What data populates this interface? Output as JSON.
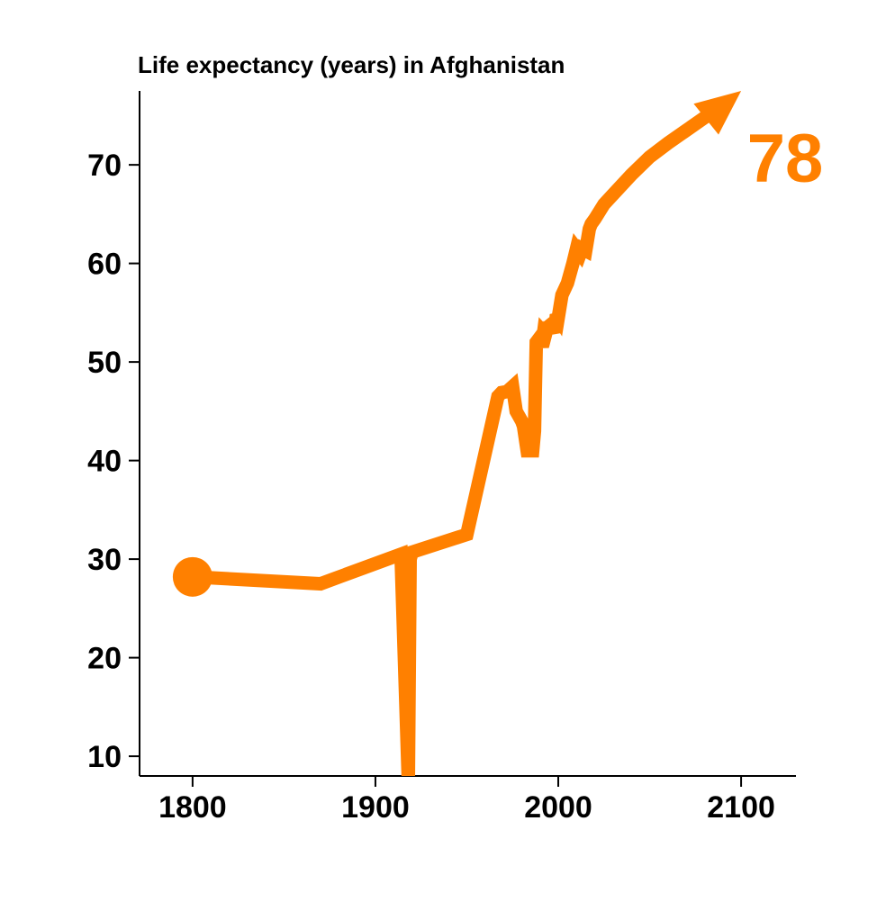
{
  "chart_data": {
    "type": "line",
    "title": "Life expectancy (years) in Afghanistan",
    "xlabel": "",
    "ylabel": "",
    "xlim": [
      1771,
      2130
    ],
    "ylim": [
      8,
      77.5
    ],
    "x_ticks": [
      1800,
      1900,
      2000,
      2100
    ],
    "y_ticks": [
      10,
      20,
      30,
      40,
      50,
      60,
      70
    ],
    "grid": false,
    "color": "#ff8000",
    "series": [
      {
        "x": [
          1800,
          1870,
          1914,
          1918,
          1919,
          1920,
          1950,
          1967,
          1969,
          1972,
          1975,
          1977,
          1980,
          1981,
          1983,
          1986,
          1987,
          1988,
          1990,
          1991,
          1992,
          1993,
          1994,
          1996,
          1998,
          1999,
          2000,
          2002,
          2005,
          2008,
          2010,
          2012,
          2013,
          2015,
          2017,
          2018,
          2020,
          2025,
          2030,
          2040,
          2050,
          2060,
          2070,
          2080,
          2090,
          2100
        ],
        "y": [
          28.2,
          27.5,
          30.5,
          7.5,
          30.0,
          30.7,
          32.5,
          46.5,
          46.9,
          47.0,
          47.5,
          45.0,
          44.0,
          43.5,
          41.0,
          41.0,
          43.0,
          52.0,
          52.5,
          51.5,
          53.0,
          52.8,
          53.5,
          53.8,
          53.0,
          54.8,
          54.5,
          56.8,
          58.0,
          60.0,
          61.5,
          61.0,
          61.5,
          61.3,
          63.5,
          64.0,
          64.5,
          66.0,
          67.0,
          69.0,
          70.8,
          72.2,
          73.5,
          74.8,
          76.0,
          77.5
        ]
      }
    ],
    "end_label": "78"
  }
}
